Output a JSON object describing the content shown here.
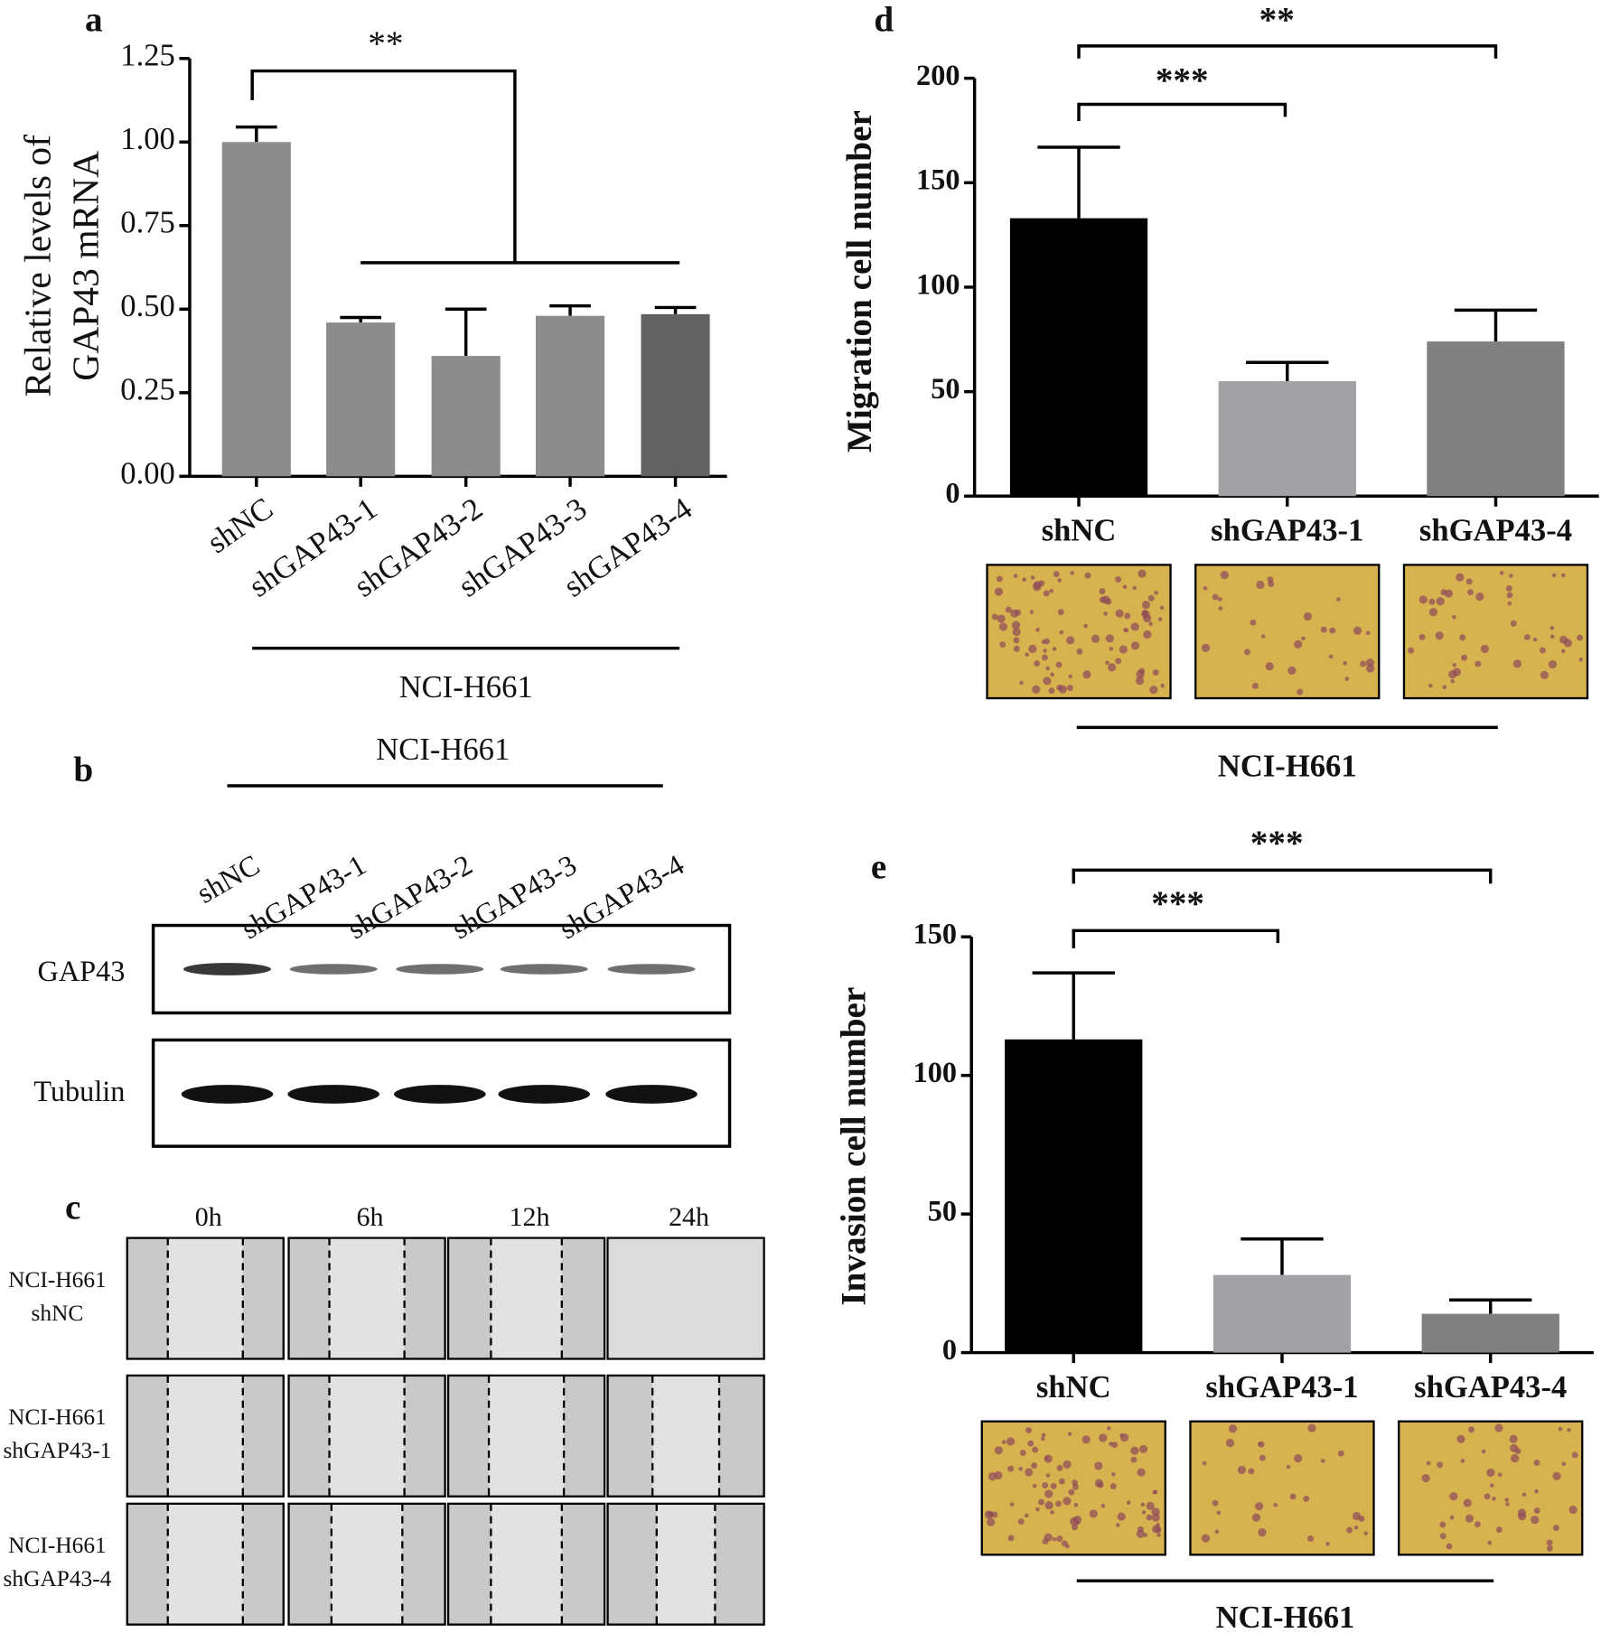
{
  "chart_data": [
    {
      "type": "bar",
      "categories": [
        "shNC",
        "shGAP43-1",
        "shGAP43-2",
        "shGAP43-3",
        "shGAP43-4"
      ],
      "values": [
        1.0,
        0.46,
        0.36,
        0.48,
        0.485
      ],
      "errors": [
        0.045,
        0.015,
        0.14,
        0.03,
        0.02
      ],
      "colors": [
        "#8c8c8c",
        "#8c8c8c",
        "#8c8c8c",
        "#8c8c8c",
        "#626262"
      ],
      "ylim": [
        0,
        1.25
      ],
      "yticks": [
        {
          "value": 0,
          "label": "0.00"
        },
        {
          "value": 0.25,
          "label": "0.25"
        },
        {
          "value": 0.5,
          "label": "0.50"
        },
        {
          "value": 0.75,
          "label": "0.75"
        },
        {
          "value": 1,
          "label": "1.00"
        },
        {
          "value": 1.25,
          "label": "1.25"
        }
      ],
      "ylabel": [
        "Relative levels of",
        "GAP43 mRNA"
      ],
      "annotations": [
        "**"
      ],
      "group_label": "NCI-H661"
    },
    {
      "type": "bar",
      "categories": [
        "shNC",
        "shGAP43-1",
        "shGAP43-4"
      ],
      "values": [
        133,
        55,
        74
      ],
      "errors": [
        34,
        9,
        15
      ],
      "colors": [
        "#000000",
        "#a2a2a6",
        "#808080"
      ],
      "ylim": [
        0,
        200
      ],
      "yticks": [
        0,
        50,
        100,
        150,
        200
      ],
      "ylabel": [
        "Migration cell number"
      ],
      "annotations": [
        "***",
        "**"
      ],
      "group_label": "NCI-H661"
    },
    {
      "type": "bar",
      "categories": [
        "shNC",
        "shGAP43-1",
        "shGAP43-4"
      ],
      "values": [
        113,
        28,
        14
      ],
      "errors": [
        24,
        13,
        5
      ],
      "colors": [
        "#000000",
        "#a2a2a6",
        "#808080"
      ],
      "ylim": [
        0,
        150
      ],
      "yticks": [
        0,
        50,
        100,
        150
      ],
      "ylabel": [
        "Invasion cell number"
      ],
      "annotations": [
        "***",
        "***"
      ],
      "group_label": "NCI-H661"
    }
  ],
  "panels": [
    "a",
    "b",
    "c",
    "d",
    "e"
  ],
  "blot": {
    "title": "NCI-H661",
    "lanes": [
      "shNC",
      "shGAP43-1",
      "shGAP43-2",
      "shGAP43-3",
      "shGAP43-4"
    ],
    "rows": [
      "GAP43",
      "Tubulin"
    ]
  },
  "wound": {
    "times": [
      "0h",
      "6h",
      "12h",
      "24h"
    ],
    "rows": [
      [
        "NCI-H661",
        "shNC"
      ],
      [
        "NCI-H661",
        "shGAP43-1"
      ],
      [
        "NCI-H661",
        "shGAP43-4"
      ]
    ]
  }
}
